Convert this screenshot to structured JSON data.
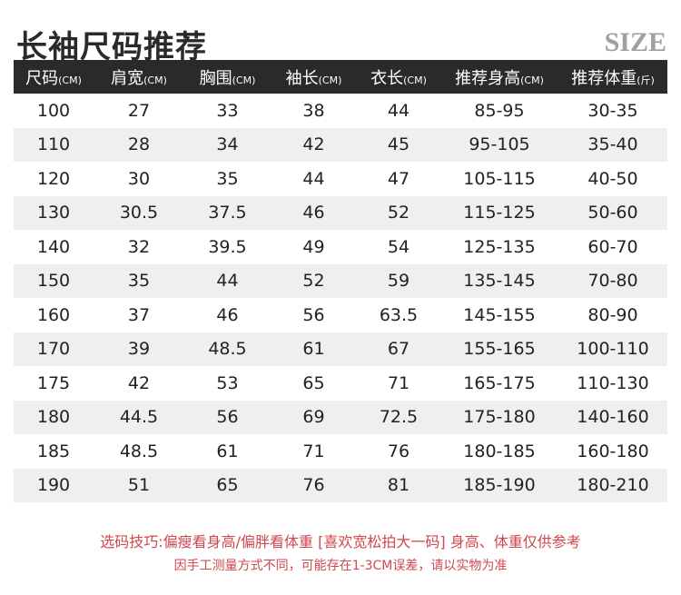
{
  "title": "长袖尺码推荐",
  "size_label": "SIZE",
  "columns": [
    {
      "name": "尺码",
      "unit": "(CM)"
    },
    {
      "name": "肩宽",
      "unit": "(CM)"
    },
    {
      "name": "胸围",
      "unit": "(CM)"
    },
    {
      "name": "袖长",
      "unit": "(CM)"
    },
    {
      "name": "衣长",
      "unit": "(CM)"
    },
    {
      "name": "推荐身高",
      "unit": "(CM)"
    },
    {
      "name": "推荐体重",
      "unit": "(斤)"
    }
  ],
  "rows": [
    [
      "100",
      "27",
      "33",
      "38",
      "44",
      "85-95",
      "30-35"
    ],
    [
      "110",
      "28",
      "34",
      "42",
      "45",
      "95-105",
      "35-40"
    ],
    [
      "120",
      "30",
      "35",
      "44",
      "47",
      "105-115",
      "40-50"
    ],
    [
      "130",
      "30.5",
      "37.5",
      "46",
      "52",
      "115-125",
      "50-60"
    ],
    [
      "140",
      "32",
      "39.5",
      "49",
      "54",
      "125-135",
      "60-70"
    ],
    [
      "150",
      "35",
      "44",
      "52",
      "59",
      "135-145",
      "70-80"
    ],
    [
      "160",
      "37",
      "46",
      "56",
      "63.5",
      "145-155",
      "80-90"
    ],
    [
      "170",
      "39",
      "48.5",
      "61",
      "67",
      "155-165",
      "100-110"
    ],
    [
      "175",
      "42",
      "53",
      "65",
      "71",
      "165-175",
      "110-130"
    ],
    [
      "180",
      "44.5",
      "56",
      "69",
      "72.5",
      "175-180",
      "140-160"
    ],
    [
      "185",
      "48.5",
      "61",
      "71",
      "76",
      "180-185",
      "160-180"
    ],
    [
      "190",
      "51",
      "65",
      "76",
      "81",
      "185-190",
      "180-210"
    ]
  ],
  "notes": [
    "选码技巧:偏瘦看身高/偏胖看体重 [喜欢宽松拍大一码] 身高、体重仅供参考",
    "因手工测量方式不同，可能存在1-3CM误差，请以实物为准"
  ],
  "colors": {
    "header_bg": "#2b2a2a",
    "note": "#d0474f",
    "alt_row": "#efefef"
  }
}
